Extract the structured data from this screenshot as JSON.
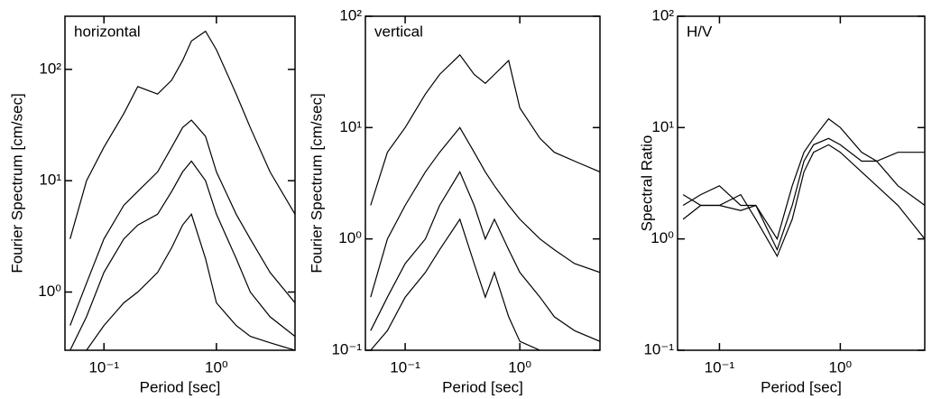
{
  "chart_data": [
    {
      "type": "line",
      "annotation": "horizontal",
      "x_label": "Period [sec]",
      "y_label": "Fourier Spectrum [cm/sec]",
      "xlog": true,
      "ylog": true,
      "color": "#000000",
      "xlim": [
        0.045,
        5
      ],
      "ylim": [
        0.3,
        300
      ],
      "xticks": [
        {
          "value": 0.1,
          "label": "10⁻¹"
        },
        {
          "value": 1,
          "label": "10⁰"
        }
      ],
      "yticks": [
        {
          "value": 1,
          "label": "10⁰"
        },
        {
          "value": 10,
          "label": "10¹"
        },
        {
          "value": 100,
          "label": "10²"
        }
      ],
      "x": [
        0.05,
        0.07,
        0.1,
        0.15,
        0.2,
        0.3,
        0.4,
        0.5,
        0.6,
        0.8,
        1,
        1.5,
        2,
        3,
        5
      ],
      "series": [
        {
          "values": [
            3,
            10,
            20,
            40,
            70,
            60,
            80,
            120,
            180,
            220,
            150,
            60,
            30,
            12,
            5
          ]
        },
        {
          "values": [
            0.5,
            1.2,
            3,
            6,
            8,
            12,
            20,
            30,
            35,
            25,
            12,
            5,
            3,
            1.5,
            0.8
          ]
        },
        {
          "values": [
            0.3,
            0.6,
            1.5,
            3,
            4,
            5,
            8,
            12,
            15,
            10,
            5,
            2,
            1,
            0.6,
            0.4
          ]
        },
        {
          "values": [
            null,
            0.3,
            0.5,
            0.8,
            1,
            1.5,
            2.5,
            4,
            5,
            2,
            0.8,
            0.5,
            0.4,
            0.35,
            0.3
          ]
        }
      ]
    },
    {
      "type": "line",
      "annotation": "vertical",
      "x_label": "Period [sec]",
      "y_label": "Fourier Spectrum [cm/sec]",
      "xlog": true,
      "ylog": true,
      "color": "#000000",
      "xlim": [
        0.045,
        5
      ],
      "ylim": [
        0.1,
        100
      ],
      "xticks": [
        {
          "value": 0.1,
          "label": "10⁻¹"
        },
        {
          "value": 1,
          "label": "10⁰"
        }
      ],
      "yticks": [
        {
          "value": 0.1,
          "label": "10⁻¹"
        },
        {
          "value": 1,
          "label": "10⁰"
        },
        {
          "value": 10,
          "label": "10¹"
        },
        {
          "value": 100,
          "label": "10²"
        }
      ],
      "x": [
        0.05,
        0.07,
        0.1,
        0.15,
        0.2,
        0.3,
        0.4,
        0.5,
        0.6,
        0.8,
        1,
        1.5,
        2,
        3,
        5
      ],
      "series": [
        {
          "values": [
            2,
            6,
            10,
            20,
            30,
            45,
            30,
            25,
            30,
            40,
            15,
            8,
            6,
            5,
            4
          ]
        },
        {
          "values": [
            0.3,
            1,
            2,
            4,
            6,
            10,
            6,
            4,
            3,
            2,
            1.5,
            1,
            0.8,
            0.6,
            0.5
          ]
        },
        {
          "values": [
            0.15,
            0.3,
            0.6,
            1,
            2,
            4,
            2,
            1,
            1.5,
            0.8,
            0.5,
            0.3,
            0.2,
            0.15,
            0.12
          ]
        },
        {
          "values": [
            0.1,
            0.15,
            0.3,
            0.5,
            0.8,
            1.5,
            0.6,
            0.3,
            0.5,
            0.2,
            0.12,
            0.1,
            null,
            null,
            null
          ]
        }
      ]
    },
    {
      "type": "line",
      "annotation": "H/V",
      "x_label": "Period [sec]",
      "y_label": "Spectral Ratio",
      "xlog": true,
      "ylog": true,
      "color": "#000000",
      "xlim": [
        0.045,
        5
      ],
      "ylim": [
        0.1,
        100
      ],
      "xticks": [
        {
          "value": 0.1,
          "label": "10⁻¹"
        },
        {
          "value": 1,
          "label": "10⁰"
        }
      ],
      "yticks": [
        {
          "value": 0.1,
          "label": "10⁻¹"
        },
        {
          "value": 1,
          "label": "10⁰"
        },
        {
          "value": 10,
          "label": "10¹"
        },
        {
          "value": 100,
          "label": "10²"
        }
      ],
      "x": [
        0.05,
        0.07,
        0.1,
        0.15,
        0.2,
        0.3,
        0.4,
        0.5,
        0.6,
        0.8,
        1,
        1.5,
        2,
        3,
        5
      ],
      "series": [
        {
          "values": [
            2,
            2.5,
            3,
            2,
            2,
            1,
            3,
            6,
            8,
            12,
            10,
            6,
            5,
            3,
            2
          ]
        },
        {
          "values": [
            1.5,
            2,
            2,
            1.8,
            2,
            0.8,
            2,
            5,
            7,
            8,
            7,
            5,
            5,
            6,
            6
          ]
        },
        {
          "values": [
            2.5,
            2,
            2,
            2.5,
            1.5,
            0.7,
            1.5,
            4,
            6,
            7,
            6,
            4,
            3,
            2,
            1
          ]
        }
      ]
    }
  ]
}
